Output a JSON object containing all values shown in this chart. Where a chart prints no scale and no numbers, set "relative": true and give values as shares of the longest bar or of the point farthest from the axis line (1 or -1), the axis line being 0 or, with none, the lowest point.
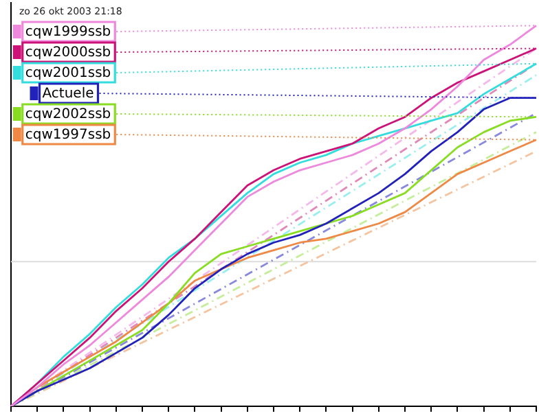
{
  "chart_data": {
    "type": "line",
    "relative": true,
    "tick_labels": false,
    "grid": false,
    "legend": "top left",
    "line_style": "solid",
    "marker": "none",
    "categories": [
      null,
      null,
      null,
      null,
      null,
      null,
      null,
      null,
      null,
      null,
      null,
      null,
      null,
      null,
      null,
      null,
      null,
      null,
      null,
      null,
      null
    ],
    "annotations": [
      "zo 26 okt 2003 21:18"
    ],
    "ref_lines": [
      {
        "axis": "y",
        "value": 0.38,
        "color": "#dddddd"
      }
    ],
    "series": [
      {
        "name": "cqw1999ssb",
        "color": "#ee88dd",
        "values": [
          0,
          0.05,
          0.11,
          0.16,
          0.22,
          0.28,
          0.34,
          0.41,
          0.48,
          0.55,
          0.59,
          0.62,
          0.64,
          0.66,
          0.69,
          0.73,
          0.78,
          0.84,
          0.91,
          0.95,
          1
        ]
      },
      {
        "name": "cqw2000ssb",
        "color": "#cc1177",
        "values": [
          0,
          0.06,
          0.12,
          0.18,
          0.25,
          0.31,
          0.38,
          0.44,
          0.51,
          0.58,
          0.62,
          0.65,
          0.67,
          0.69,
          0.73,
          0.76,
          0.81,
          0.85,
          0.88,
          0.91,
          0.94
        ]
      },
      {
        "name": "cqw2001ssb",
        "color": "#33dddd",
        "values": [
          0,
          0.06,
          0.13,
          0.19,
          0.26,
          0.32,
          0.39,
          0.44,
          0.5,
          0.56,
          0.61,
          0.64,
          0.66,
          0.69,
          0.71,
          0.73,
          0.75,
          0.77,
          0.82,
          0.86,
          0.9
        ]
      },
      {
        "name": "Actuele",
        "color": "#2222bb",
        "values": [
          0,
          0.04,
          0.07,
          0.1,
          0.14,
          0.18,
          0.24,
          0.31,
          0.36,
          0.4,
          0.43,
          0.45,
          0.48,
          0.52,
          0.56,
          0.61,
          0.67,
          0.72,
          0.78,
          0.81,
          0.81
        ]
      },
      {
        "name": "cqw2002ssb",
        "color": "#88dd22",
        "values": [
          0,
          0.04,
          0.08,
          0.12,
          0.16,
          0.2,
          0.27,
          0.35,
          0.4,
          0.42,
          0.44,
          0.46,
          0.48,
          0.5,
          0.53,
          0.56,
          0.62,
          0.68,
          0.72,
          0.75,
          0.76
        ]
      },
      {
        "name": "cqw1997ssb",
        "color": "#ee8844",
        "values": [
          0,
          0.05,
          0.09,
          0.13,
          0.17,
          0.22,
          0.27,
          0.33,
          0.36,
          0.39,
          0.41,
          0.43,
          0.44,
          0.46,
          0.48,
          0.51,
          0.56,
          0.61,
          0.64,
          0.67,
          0.7
        ]
      },
      {
        "color": "#f4b8ea",
        "line_style": "dashed",
        "values": [
          0,
          null,
          null,
          null,
          null,
          null,
          null,
          null,
          null,
          null,
          null,
          null,
          null,
          null,
          null,
          null,
          null,
          null,
          null,
          null,
          0.94
        ]
      },
      {
        "color": "#e088b8",
        "line_style": "dashed",
        "values": [
          0,
          null,
          null,
          null,
          null,
          null,
          null,
          null,
          null,
          null,
          null,
          null,
          null,
          null,
          null,
          null,
          null,
          null,
          null,
          null,
          0.9
        ]
      },
      {
        "color": "#99eeee",
        "line_style": "dashed",
        "values": [
          0,
          null,
          null,
          null,
          null,
          null,
          null,
          null,
          null,
          null,
          null,
          null,
          null,
          null,
          null,
          null,
          null,
          null,
          null,
          null,
          0.87
        ]
      },
      {
        "color": "#8888dd",
        "line_style": "dashed",
        "values": [
          0,
          null,
          null,
          null,
          null,
          null,
          null,
          null,
          null,
          null,
          null,
          null,
          null,
          null,
          null,
          null,
          null,
          null,
          null,
          null,
          0.77
        ]
      },
      {
        "color": "#c4ee99",
        "line_style": "dashed",
        "values": [
          0,
          null,
          null,
          null,
          null,
          null,
          null,
          null,
          null,
          null,
          null,
          null,
          null,
          null,
          null,
          null,
          null,
          null,
          null,
          null,
          0.72
        ]
      },
      {
        "color": "#f4c4a0",
        "line_style": "dashed",
        "values": [
          0,
          null,
          null,
          null,
          null,
          null,
          null,
          null,
          null,
          null,
          null,
          null,
          null,
          null,
          null,
          null,
          null,
          null,
          null,
          null,
          0.67
        ]
      }
    ]
  }
}
